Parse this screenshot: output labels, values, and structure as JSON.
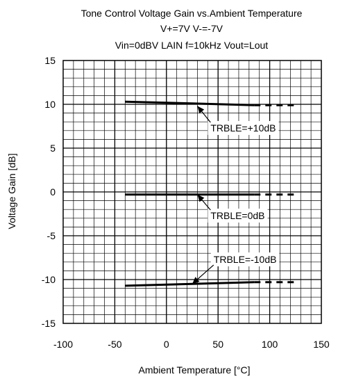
{
  "chart_data": {
    "type": "line",
    "title": "Tone Control  Voltage Gain vs.Ambient Temperature",
    "subtitle_lines": [
      "V+=7V V-=-7V",
      "Vin=0dBV LAIN f=10kHz Vout=Lout"
    ],
    "xlabel": "Ambient Temperature [°C]",
    "ylabel": "Voltage Gain [dB]",
    "xlim": [
      -100,
      150
    ],
    "ylim": [
      -15,
      15
    ],
    "x_ticks": [
      -100,
      -50,
      0,
      50,
      100,
      150
    ],
    "y_ticks": [
      15,
      10,
      5,
      0,
      -5,
      -10,
      -15
    ],
    "x_minor_step": 10,
    "y_minor_step": 1,
    "grid": true,
    "series": [
      {
        "name": "TRBLE=+10dB",
        "solid": {
          "x": [
            -40,
            25,
            85
          ],
          "y": [
            10.3,
            10.1,
            9.9
          ]
        },
        "dashed": {
          "x": [
            85,
            125
          ],
          "y": [
            9.9,
            9.9
          ]
        },
        "label_anchor": [
          30,
          9.8
        ],
        "label_pos": [
          40,
          7.3
        ]
      },
      {
        "name": "TRBLE=0dB",
        "solid": {
          "x": [
            -40,
            25,
            85
          ],
          "y": [
            -0.3,
            -0.3,
            -0.3
          ]
        },
        "dashed": {
          "x": [
            85,
            125
          ],
          "y": [
            -0.3,
            -0.3
          ]
        },
        "label_anchor": [
          30,
          -0.3
        ],
        "label_pos": [
          40,
          -2.7
        ]
      },
      {
        "name": "TRBLE=-10dB",
        "solid": {
          "x": [
            -40,
            25,
            85
          ],
          "y": [
            -10.7,
            -10.5,
            -10.3
          ]
        },
        "dashed": {
          "x": [
            85,
            125
          ],
          "y": [
            -10.3,
            -10.3
          ]
        },
        "label_anchor": [
          25,
          -10.5
        ],
        "label_pos": [
          43,
          -7.7
        ]
      }
    ]
  }
}
